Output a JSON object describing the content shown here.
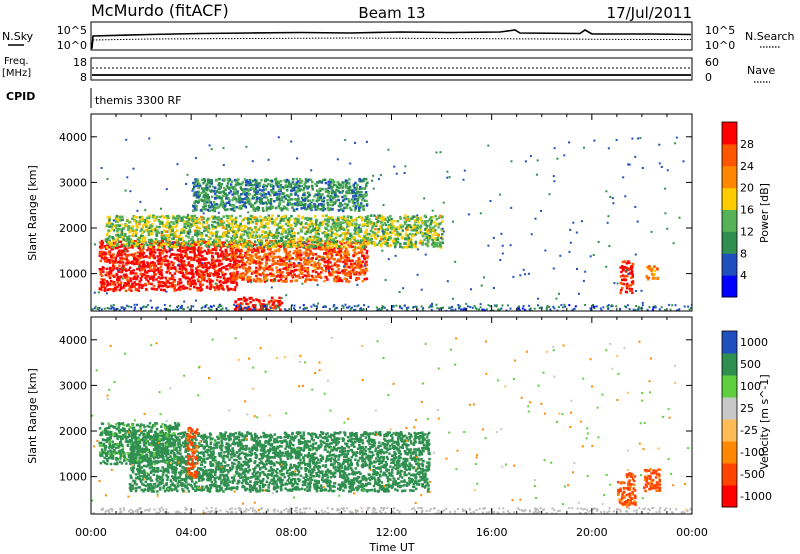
{
  "header": {
    "station": "McMurdo (fitACF)",
    "beam": "Beam 13",
    "date": "17/Jul/2011"
  },
  "strip1": {
    "left_label": "N.Sky",
    "left_ticks": [
      "10^5",
      "10^0"
    ],
    "right_ticks": [
      "10^5",
      "10^0"
    ],
    "right_label": "N.Search"
  },
  "strip2": {
    "left_label_1": "Freq.",
    "left_label_2": "[MHz]",
    "left_ticks": [
      "18",
      "8"
    ],
    "right_ticks": [
      "60",
      "0"
    ],
    "right_label": "Nave"
  },
  "strip3": {
    "left_label": "CPID",
    "program": "themis 3300 RF"
  },
  "colors": {
    "power": [
      "#0000ff",
      "#1f4fbf",
      "#2f8f4f",
      "#55b255",
      "#ffcc00",
      "#ff8800",
      "#ff5500",
      "#ff0000"
    ],
    "velocity": [
      "#ff0000",
      "#ff4400",
      "#ff8800",
      "#ffbb55",
      "#c8c8c8",
      "#5fcf3f",
      "#2f8f4f",
      "#1f4fbf"
    ]
  },
  "chart_data": [
    {
      "type": "heatmap",
      "title": "",
      "xlabel": "",
      "ylabel": "Slant Range [km]",
      "xlim": [
        "00:00",
        "24:00"
      ],
      "ylim": [
        180,
        4500
      ],
      "x_ticks": [
        "00:00",
        "04:00",
        "08:00",
        "12:00",
        "16:00",
        "20:00",
        "00:00"
      ],
      "y_ticks": [
        1000,
        2000,
        3000,
        4000
      ],
      "colorbar": {
        "label": "Power [dB]",
        "ticks": [
          "4",
          "8",
          "12",
          "16",
          "20",
          "24",
          "28"
        ],
        "range": [
          0,
          30
        ]
      },
      "regions": [
        {
          "start_h": 0.3,
          "end_h": 5.8,
          "range_min_km": 650,
          "range_max_km": 1750,
          "value": 29
        },
        {
          "start_h": 5.7,
          "end_h": 7.6,
          "range_min_km": 180,
          "range_max_km": 500,
          "value": 29
        },
        {
          "start_h": 5.5,
          "end_h": 11.0,
          "range_min_km": 850,
          "range_max_km": 1750,
          "value": 25
        },
        {
          "start_h": 0.5,
          "end_h": 14.0,
          "range_min_km": 1600,
          "range_max_km": 2300,
          "value": 14
        },
        {
          "start_h": 4.0,
          "end_h": 11.0,
          "range_min_km": 2400,
          "range_max_km": 3100,
          "value": 10
        },
        {
          "start_h": 21.1,
          "end_h": 21.6,
          "range_min_km": 600,
          "range_max_km": 1300,
          "value": 28
        },
        {
          "start_h": 22.1,
          "end_h": 22.6,
          "range_min_km": 900,
          "range_max_km": 1200,
          "value": 22
        }
      ]
    },
    {
      "type": "heatmap",
      "title": "",
      "xlabel": "Time UT",
      "ylabel": "Slant Range [km]",
      "xlim": [
        "00:00",
        "24:00"
      ],
      "ylim": [
        180,
        4500
      ],
      "x_ticks": [
        "00:00",
        "04:00",
        "08:00",
        "12:00",
        "16:00",
        "20:00",
        "00:00"
      ],
      "y_ticks": [
        1000,
        2000,
        3000,
        4000
      ],
      "colorbar": {
        "label": "Velocity [m s^-1]",
        "ticks": [
          "-1000",
          "-500",
          "-100",
          "-25",
          "25",
          "100",
          "500",
          "1000"
        ],
        "range": [
          -1000,
          1000
        ]
      },
      "regions": [
        {
          "start_h": 1.5,
          "end_h": 13.5,
          "range_min_km": 700,
          "range_max_km": 2000,
          "value": 300
        },
        {
          "start_h": 0.3,
          "end_h": 3.5,
          "range_min_km": 1300,
          "range_max_km": 2200,
          "value": 200
        },
        {
          "start_h": 3.8,
          "end_h": 4.2,
          "range_min_km": 1000,
          "range_max_km": 2100,
          "value": -200
        },
        {
          "start_h": 21.0,
          "end_h": 21.7,
          "range_min_km": 400,
          "range_max_km": 1100,
          "value": -200
        },
        {
          "start_h": 22.0,
          "end_h": 22.7,
          "range_min_km": 700,
          "range_max_km": 1200,
          "value": -200
        }
      ]
    }
  ]
}
